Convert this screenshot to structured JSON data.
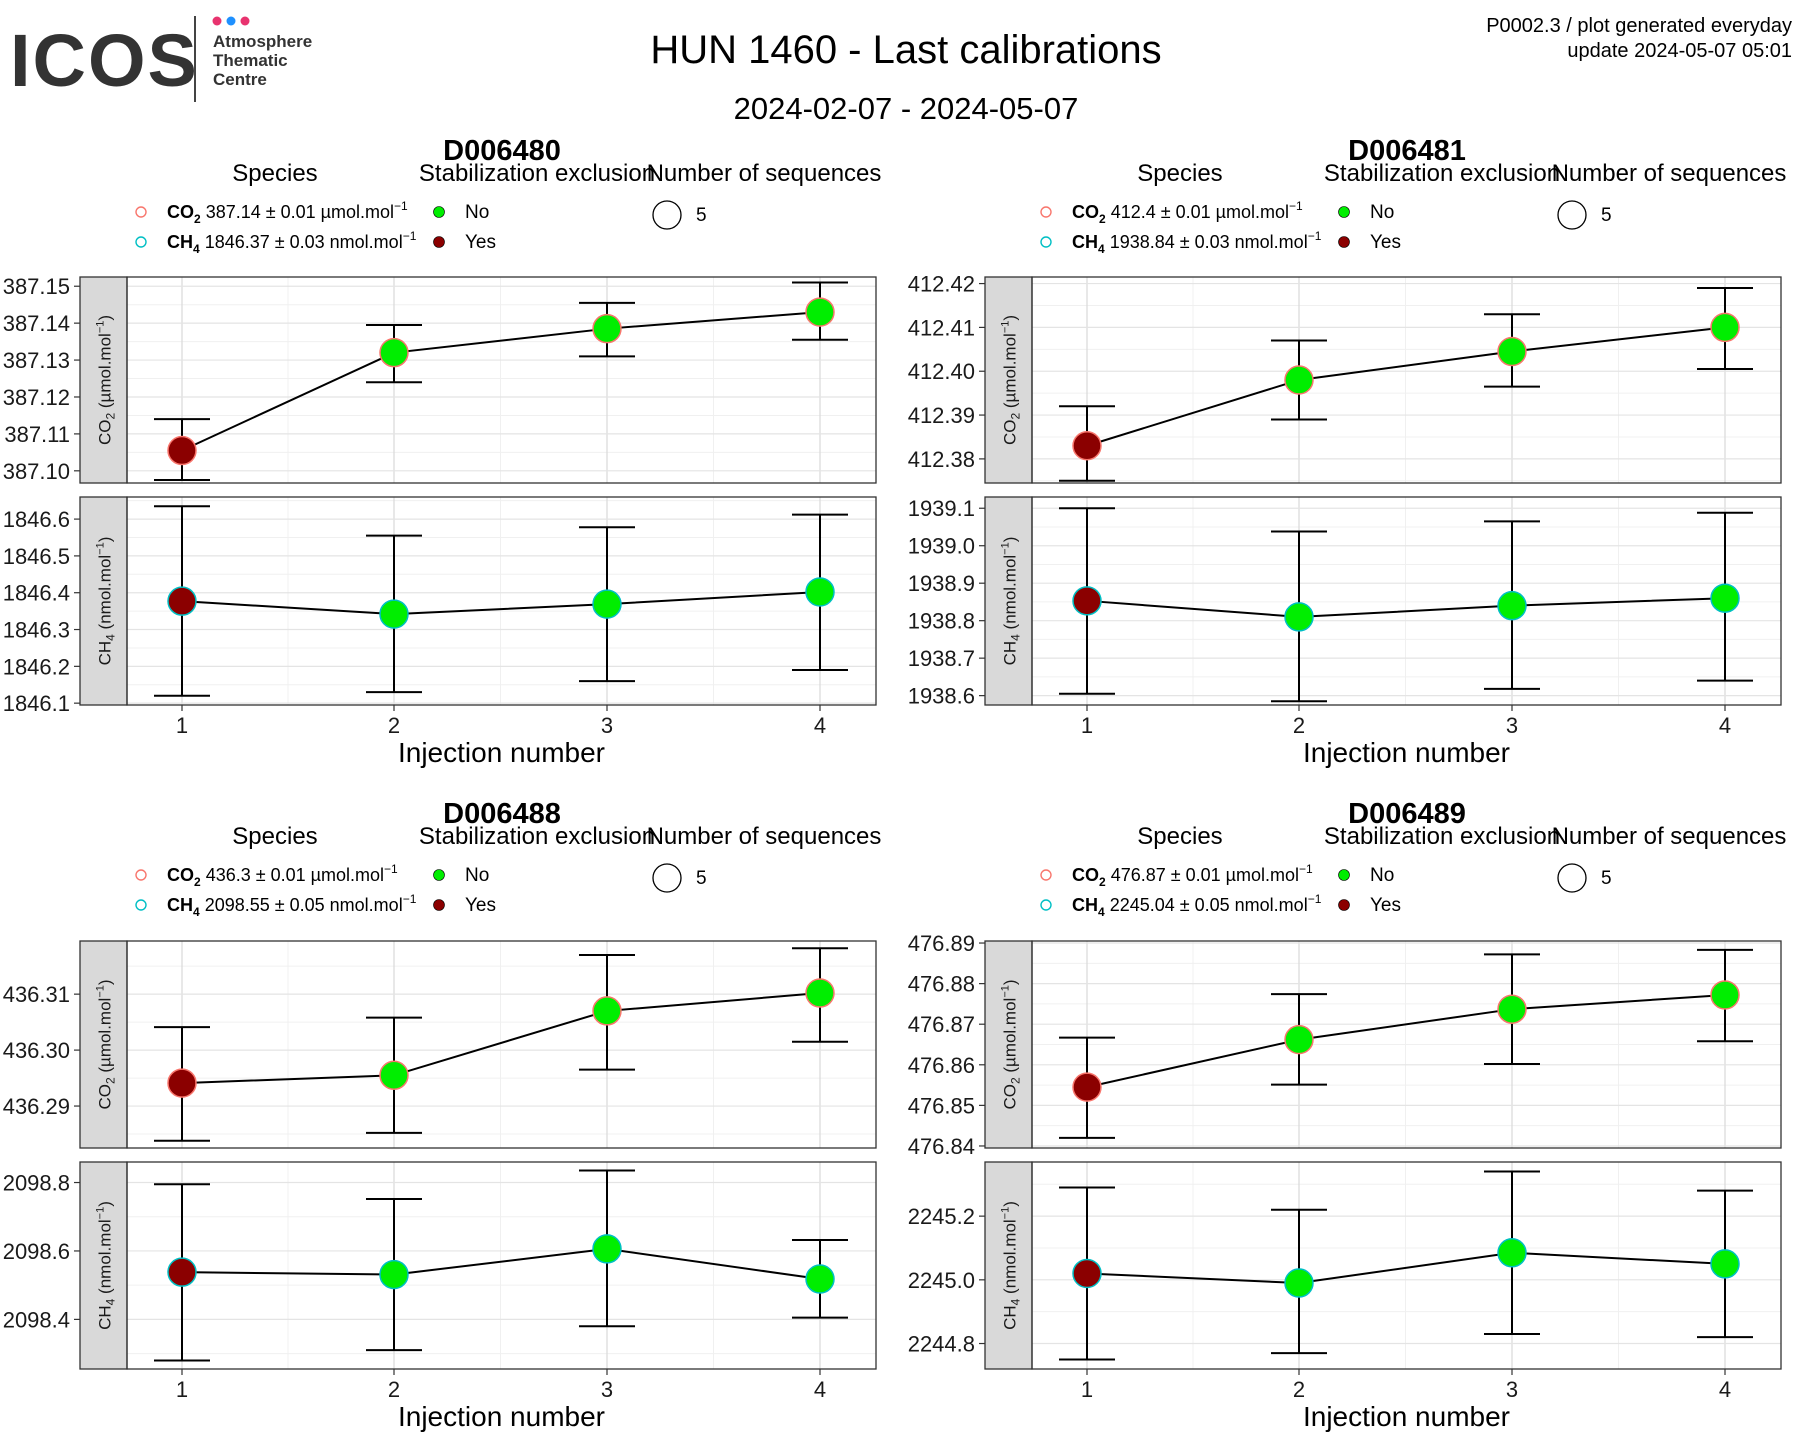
{
  "header": {
    "logo_text": "ICOS",
    "logo_lines": [
      "Atmosphere",
      "Thematic",
      "Centre"
    ],
    "logo_dot_colors": [
      "#e8336f",
      "#1e90ff",
      "#e8336f"
    ],
    "title": "HUN 1460 - Last calibrations",
    "date_range": "2024-02-07 - 2024-05-07",
    "plot_id": "P0002.3 / plot generated everyday",
    "update": "update  2024-05-07 05:01"
  },
  "legend_titles": {
    "species": "Species",
    "stabilization": "Stabilization exclusion",
    "sequences": "Number of sequences"
  },
  "legend_labels": {
    "co2": "CO",
    "ch4": "CH",
    "sub_co2": "2",
    "sub_ch4": "4",
    "unit_co2": "µmol.mol",
    "unit_ch4": "nmol.mol",
    "exponent": "−1",
    "pm": "±",
    "stab_no": "No",
    "stab_yes": "Yes",
    "seq_count": "5"
  },
  "facet_labels": {
    "co2": "CO",
    "co2_sub": "2",
    "co2_unit": " (µmol.mol",
    "ch4": "CH",
    "ch4_sub": "4",
    "ch4_unit": " (nmol.mol",
    "exp": "−1",
    "close": ")"
  },
  "xlabel": "Injection number",
  "colors": {
    "no": "#00ee00",
    "yes": "#8b0000",
    "co2_outline": "#f8766d",
    "ch4_outline": "#00bfc4"
  },
  "chart_data": [
    {
      "type": "scatter",
      "title": "D006480",
      "x": [
        1,
        2,
        3,
        4
      ],
      "xlabel": "Injection number",
      "legend": {
        "co2_value": "387.14",
        "co2_err": "0.01",
        "ch4_value": "1846.37",
        "ch4_err": "0.03"
      },
      "co2": {
        "values": [
          387.1055,
          387.132,
          387.1385,
          387.143
        ],
        "err_low": [
          387.0975,
          387.124,
          387.131,
          387.1355
        ],
        "err_high": [
          387.114,
          387.1395,
          387.1455,
          387.151
        ],
        "stabilization": [
          "Yes",
          "No",
          "No",
          "No"
        ],
        "ylim": [
          387.0967,
          387.1525
        ],
        "yticks": [
          "387.10",
          "387.11",
          "387.12",
          "387.13",
          "387.14",
          "387.15"
        ]
      },
      "ch4": {
        "values": [
          1846.377,
          1846.342,
          1846.369,
          1846.402
        ],
        "err_low": [
          1846.12,
          1846.13,
          1846.16,
          1846.19
        ],
        "err_high": [
          1846.635,
          1846.555,
          1846.578,
          1846.612
        ],
        "stabilization": [
          "Yes",
          "No",
          "No",
          "No"
        ],
        "ylim": [
          1846.095,
          1846.66
        ],
        "yticks": [
          "1846.1",
          "1846.2",
          "1846.3",
          "1846.4",
          "1846.5",
          "1846.6"
        ]
      }
    },
    {
      "type": "scatter",
      "title": "D006481",
      "x": [
        1,
        2,
        3,
        4
      ],
      "xlabel": "Injection number",
      "legend": {
        "co2_value": "412.4",
        "co2_err": "0.01",
        "ch4_value": "1938.84",
        "ch4_err": "0.03"
      },
      "co2": {
        "values": [
          412.383,
          412.398,
          412.4045,
          412.41
        ],
        "err_low": [
          412.375,
          412.389,
          412.3965,
          412.4005
        ],
        "err_high": [
          412.392,
          412.407,
          412.413,
          412.419
        ],
        "stabilization": [
          "Yes",
          "No",
          "No",
          "No"
        ],
        "ylim": [
          412.3745,
          412.4215
        ],
        "yticks": [
          "412.38",
          "412.39",
          "412.40",
          "412.41",
          "412.42"
        ]
      },
      "ch4": {
        "values": [
          1938.853,
          1938.81,
          1938.84,
          1938.86
        ],
        "err_low": [
          1938.605,
          1938.585,
          1938.618,
          1938.64
        ],
        "err_high": [
          1939.1,
          1939.038,
          1939.065,
          1939.088
        ],
        "stabilization": [
          "Yes",
          "No",
          "No",
          "No"
        ],
        "ylim": [
          1938.575,
          1939.13
        ],
        "yticks": [
          "1938.6",
          "1938.7",
          "1938.8",
          "1938.9",
          "1939.0",
          "1939.1"
        ]
      }
    },
    {
      "type": "scatter",
      "title": "D006488",
      "x": [
        1,
        2,
        3,
        4
      ],
      "xlabel": "Injection number",
      "legend": {
        "co2_value": "436.3",
        "co2_err": "0.01",
        "ch4_value": "2098.55",
        "ch4_err": "0.05"
      },
      "co2": {
        "values": [
          436.2941,
          436.2955,
          436.307,
          436.3102
        ],
        "err_low": [
          436.2838,
          436.2852,
          436.2965,
          436.3015
        ],
        "err_high": [
          436.3041,
          436.3058,
          436.317,
          436.3182
        ],
        "stabilization": [
          "Yes",
          "No",
          "No",
          "No"
        ],
        "ylim": [
          436.2825,
          436.3195
        ],
        "yticks": [
          "436.29",
          "436.30",
          "436.31"
        ]
      },
      "ch4": {
        "values": [
          2098.538,
          2098.531,
          2098.606,
          2098.518
        ],
        "err_low": [
          2098.28,
          2098.31,
          2098.38,
          2098.405
        ],
        "err_high": [
          2098.795,
          2098.752,
          2098.835,
          2098.632
        ],
        "stabilization": [
          "Yes",
          "No",
          "No",
          "No"
        ],
        "ylim": [
          2098.255,
          2098.86
        ],
        "yticks": [
          "2098.4",
          "2098.6",
          "2098.8"
        ]
      }
    },
    {
      "type": "scatter",
      "title": "D006489",
      "x": [
        1,
        2,
        3,
        4
      ],
      "xlabel": "Injection number",
      "legend": {
        "co2_value": "476.87",
        "co2_err": "0.01",
        "ch4_value": "2245.04",
        "ch4_err": "0.05"
      },
      "co2": {
        "values": [
          476.8545,
          476.8662,
          476.8737,
          476.8772
        ],
        "err_low": [
          476.842,
          476.8551,
          476.8602,
          476.8658
        ],
        "err_high": [
          476.8667,
          476.8774,
          476.8872,
          476.8883
        ],
        "stabilization": [
          "Yes",
          "No",
          "No",
          "No"
        ],
        "ylim": [
          476.8395,
          476.8905
        ],
        "yticks": [
          "476.84",
          "476.85",
          "476.86",
          "476.87",
          "476.88",
          "476.89"
        ]
      },
      "ch4": {
        "values": [
          2245.02,
          2244.99,
          2245.085,
          2245.05
        ],
        "err_low": [
          2244.75,
          2244.77,
          2244.83,
          2244.82
        ],
        "err_high": [
          2245.29,
          2245.22,
          2245.34,
          2245.28
        ],
        "stabilization": [
          "Yes",
          "No",
          "No",
          "No"
        ],
        "ylim": [
          2244.72,
          2245.37
        ],
        "yticks": [
          "2244.8",
          "2245.0",
          "2245.2"
        ]
      }
    }
  ]
}
